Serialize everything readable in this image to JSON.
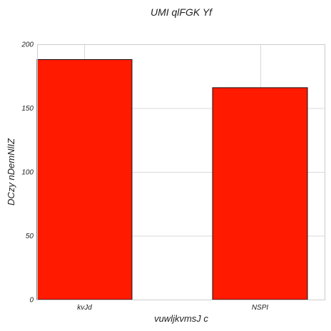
{
  "chart_data": {
    "type": "bar",
    "title": "UMI qlFGK Yf",
    "xlabel": "vuwljkvmsJ  c",
    "ylabel": "DCzy nDemNlIZ",
    "categories": [
      "kvJd",
      "NSPI"
    ],
    "values": [
      188,
      166
    ],
    "ylim": [
      0,
      200
    ],
    "yticks": [
      0,
      50,
      100,
      150,
      200
    ],
    "bar_color": "#ff1a00",
    "grid": true
  }
}
